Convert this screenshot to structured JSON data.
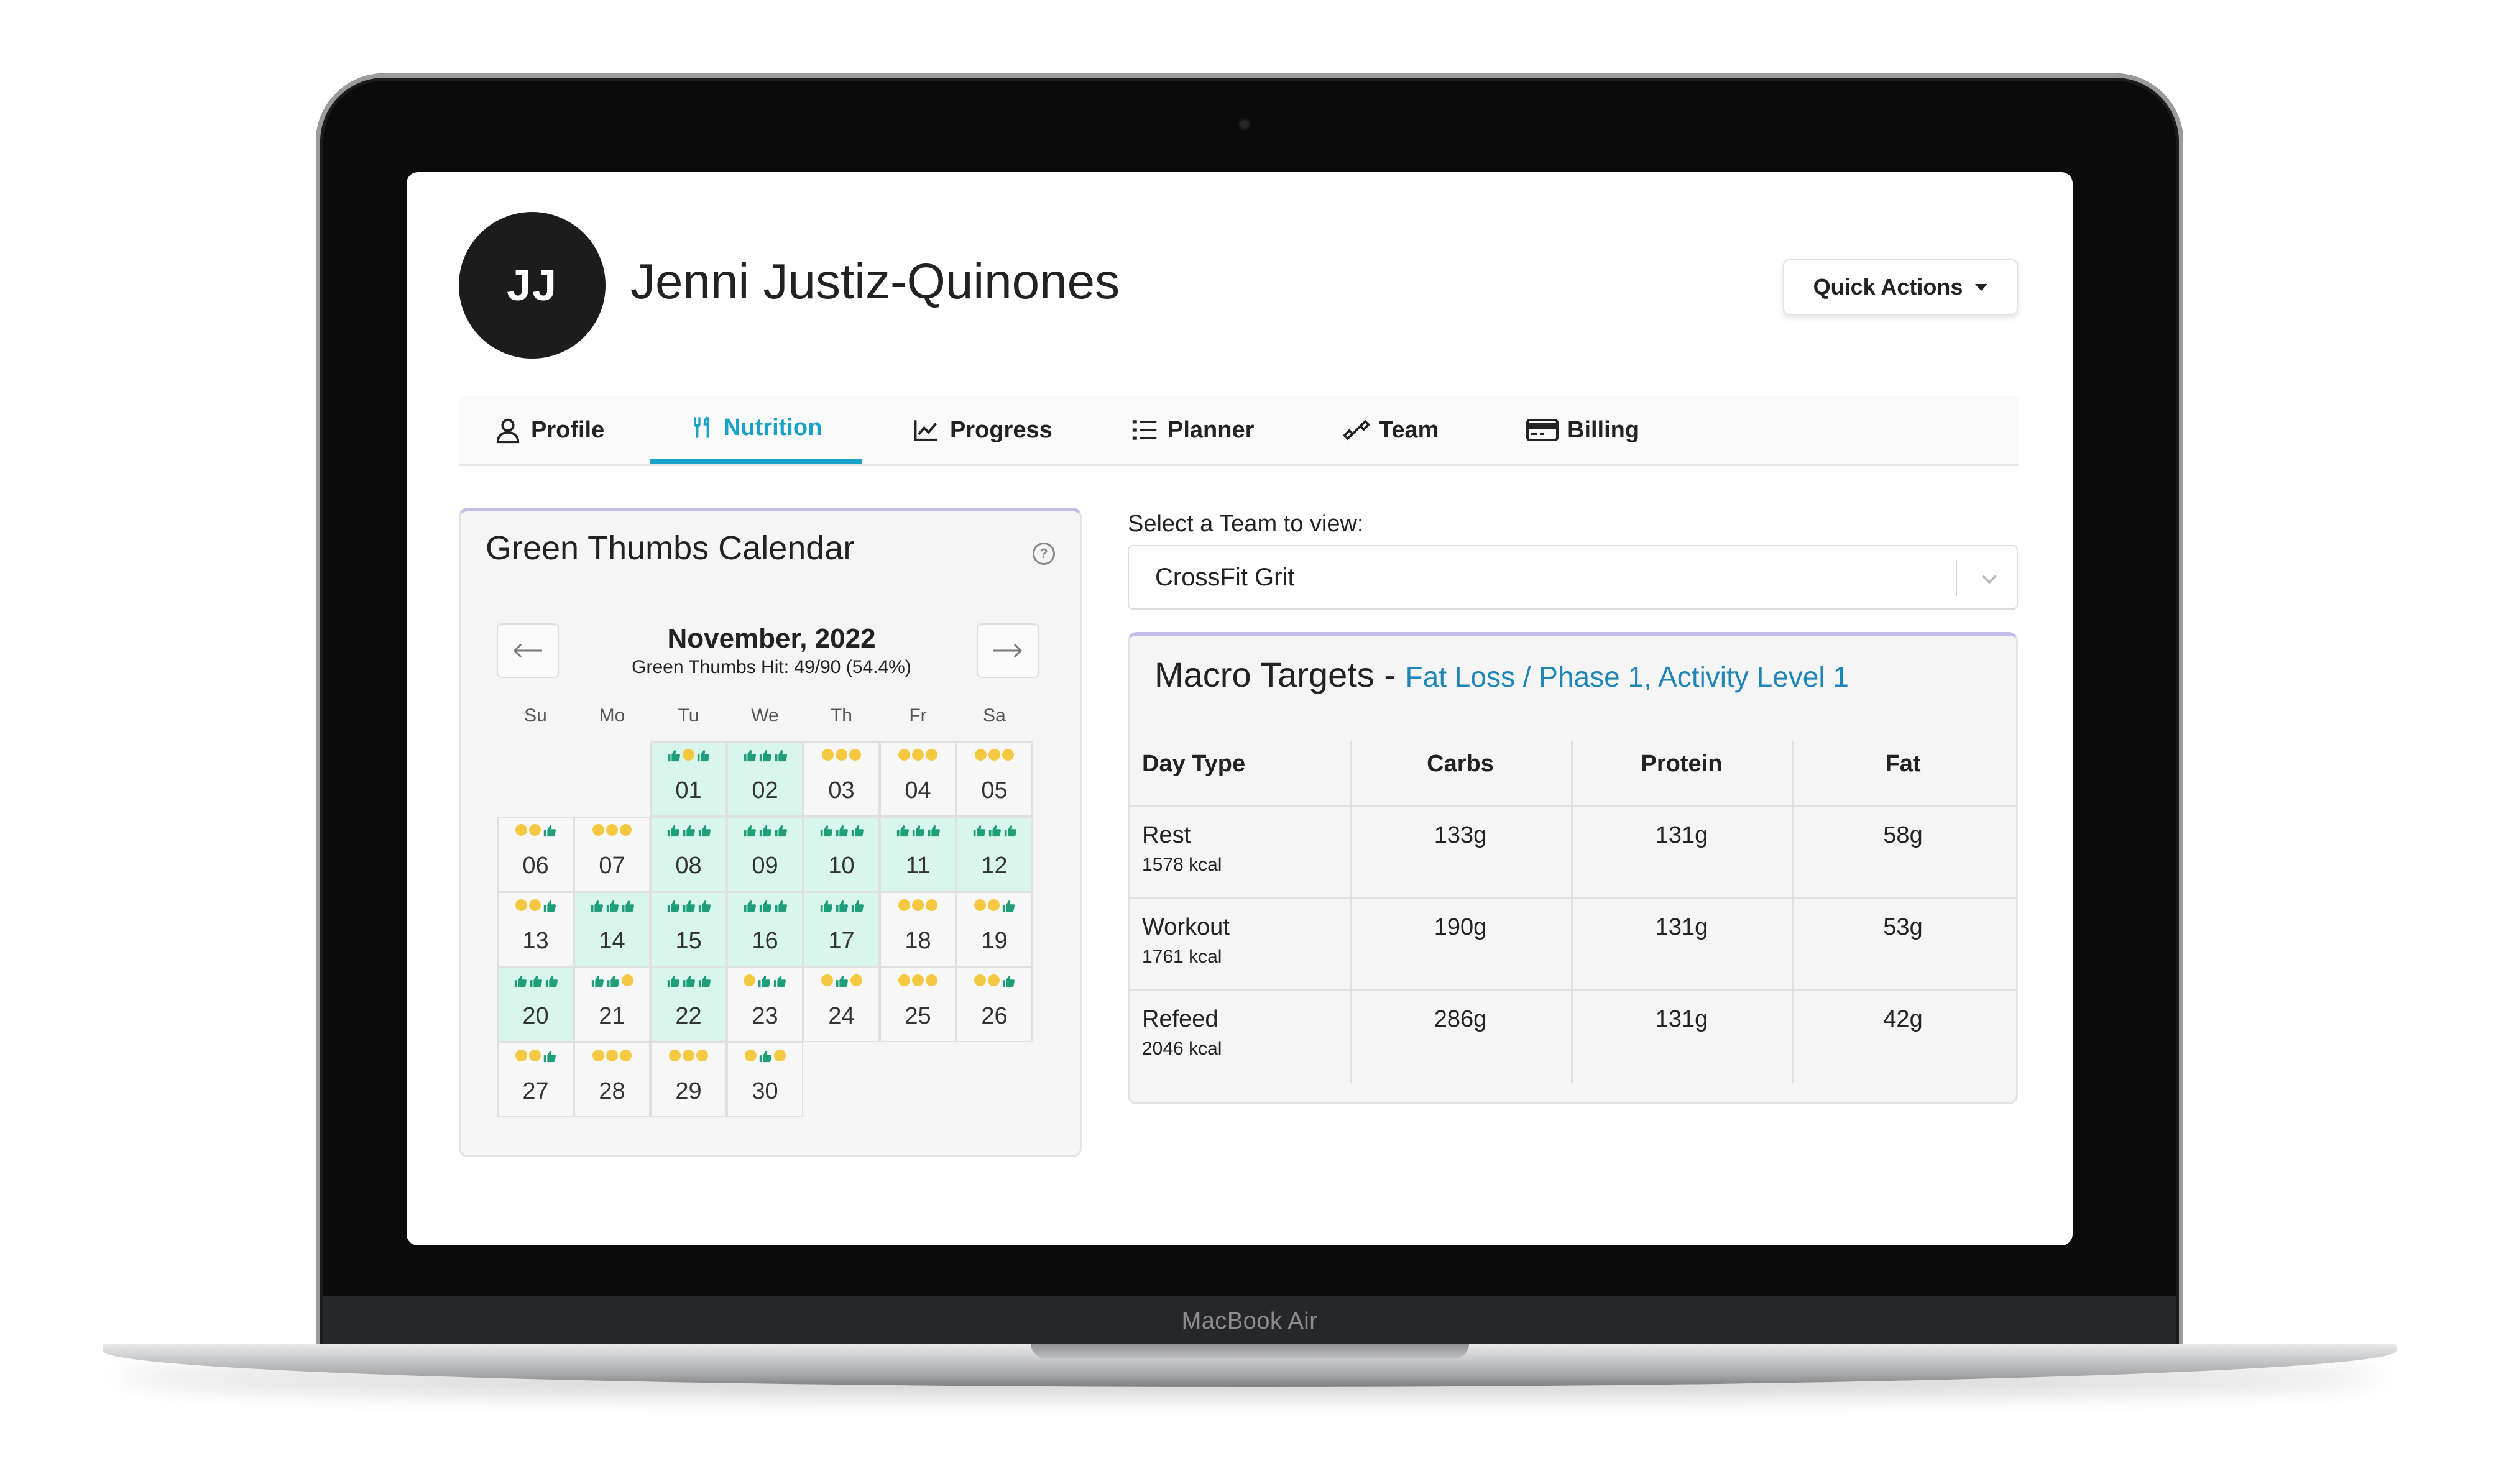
{
  "device": {
    "brand_label": "MacBook Air"
  },
  "header": {
    "avatar_initials": "JJ",
    "user_name": "Jenni Justiz-Quinones",
    "quick_actions_label": "Quick Actions"
  },
  "tabs": [
    {
      "label": "Profile",
      "icon": "user-icon"
    },
    {
      "label": "Nutrition",
      "icon": "utensils-icon",
      "active": true
    },
    {
      "label": "Progress",
      "icon": "chart-line-icon"
    },
    {
      "label": "Planner",
      "icon": "list-icon"
    },
    {
      "label": "Team",
      "icon": "dumbbell-icon"
    },
    {
      "label": "Billing",
      "icon": "credit-card-icon"
    }
  ],
  "calendar": {
    "title": "Green Thumbs Calendar",
    "help_icon": "?",
    "month": "November, 2022",
    "summary": "Green Thumbs Hit: 49/90 (54.4%)",
    "weekdays": [
      "Su",
      "Mo",
      "Tu",
      "We",
      "Th",
      "Fr",
      "Sa"
    ],
    "first_weekday_index": 2,
    "days": [
      {
        "day": "01",
        "marks": [
          "t",
          "d",
          "t"
        ],
        "green": true
      },
      {
        "day": "02",
        "marks": [
          "t",
          "t",
          "t"
        ],
        "green": true
      },
      {
        "day": "03",
        "marks": [
          "d",
          "d",
          "d"
        ]
      },
      {
        "day": "04",
        "marks": [
          "d",
          "d",
          "d"
        ]
      },
      {
        "day": "05",
        "marks": [
          "d",
          "d",
          "d"
        ]
      },
      {
        "day": "06",
        "marks": [
          "d",
          "d",
          "t"
        ]
      },
      {
        "day": "07",
        "marks": [
          "d",
          "d",
          "d"
        ]
      },
      {
        "day": "08",
        "marks": [
          "t",
          "t",
          "t"
        ],
        "green": true
      },
      {
        "day": "09",
        "marks": [
          "t",
          "t",
          "t"
        ],
        "green": true
      },
      {
        "day": "10",
        "marks": [
          "t",
          "t",
          "t"
        ],
        "green": true
      },
      {
        "day": "11",
        "marks": [
          "t",
          "t",
          "t"
        ],
        "green": true
      },
      {
        "day": "12",
        "marks": [
          "t",
          "t",
          "t"
        ],
        "green": true
      },
      {
        "day": "13",
        "marks": [
          "d",
          "d",
          "t"
        ]
      },
      {
        "day": "14",
        "marks": [
          "t",
          "t",
          "t"
        ],
        "green": true
      },
      {
        "day": "15",
        "marks": [
          "t",
          "t",
          "t"
        ],
        "green": true
      },
      {
        "day": "16",
        "marks": [
          "t",
          "t",
          "t"
        ],
        "green": true
      },
      {
        "day": "17",
        "marks": [
          "t",
          "t",
          "t"
        ],
        "green": true
      },
      {
        "day": "18",
        "marks": [
          "d",
          "d",
          "d"
        ]
      },
      {
        "day": "19",
        "marks": [
          "d",
          "d",
          "t"
        ]
      },
      {
        "day": "20",
        "marks": [
          "t",
          "t",
          "t"
        ],
        "green": true
      },
      {
        "day": "21",
        "marks": [
          "t",
          "t",
          "d"
        ]
      },
      {
        "day": "22",
        "marks": [
          "t",
          "t",
          "t"
        ],
        "green": true
      },
      {
        "day": "23",
        "marks": [
          "d",
          "t",
          "t"
        ]
      },
      {
        "day": "24",
        "marks": [
          "d",
          "t",
          "d"
        ]
      },
      {
        "day": "25",
        "marks": [
          "d",
          "d",
          "d"
        ]
      },
      {
        "day": "26",
        "marks": [
          "d",
          "d",
          "t"
        ]
      },
      {
        "day": "27",
        "marks": [
          "d",
          "d",
          "t"
        ]
      },
      {
        "day": "28",
        "marks": [
          "d",
          "d",
          "d"
        ]
      },
      {
        "day": "29",
        "marks": [
          "d",
          "d",
          "d"
        ]
      },
      {
        "day": "30",
        "marks": [
          "d",
          "t",
          "d"
        ]
      }
    ]
  },
  "team_select": {
    "label": "Select a Team to view:",
    "value": "CrossFit Grit"
  },
  "macros": {
    "title": "Macro Targets - ",
    "subtitle": "Fat Loss / Phase 1, Activity Level 1",
    "headers": [
      "Day Type",
      "Carbs",
      "Protein",
      "Fat"
    ],
    "rows": [
      {
        "type": "Rest",
        "kcal": "1578 kcal",
        "carbs": "133g",
        "protein": "131g",
        "fat": "58g"
      },
      {
        "type": "Workout",
        "kcal": "1761 kcal",
        "carbs": "190g",
        "protein": "131g",
        "fat": "53g"
      },
      {
        "type": "Refeed",
        "kcal": "2046 kcal",
        "carbs": "286g",
        "protein": "131g",
        "fat": "42g"
      }
    ]
  },
  "colors": {
    "accent": "#17a2c8",
    "thumb_green": "#1f9e7a",
    "dot_yellow": "#f5c842",
    "day_green": "#d9f6ec",
    "link_blue": "#1e86b7"
  }
}
